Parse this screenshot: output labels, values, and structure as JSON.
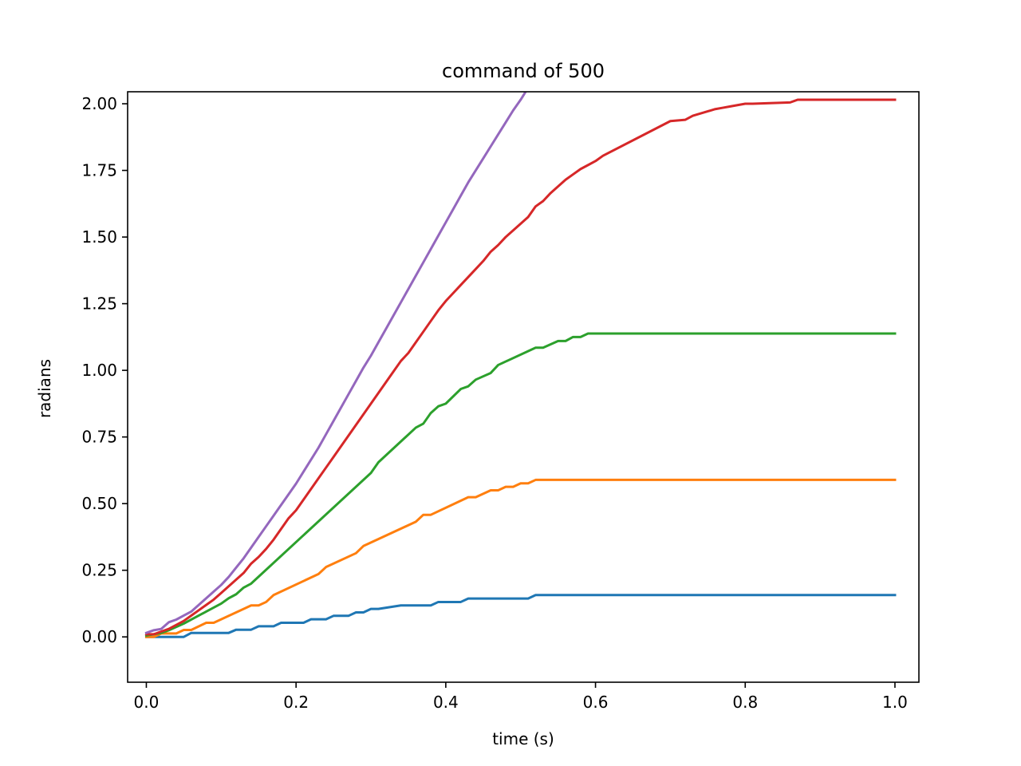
{
  "chart_data": {
    "type": "line",
    "title": "command of 500",
    "xlabel": "time (s)",
    "ylabel": "radians",
    "xlim": [
      -0.025,
      1.032
    ],
    "ylim": [
      -0.17,
      2.045
    ],
    "xticks": [
      0.0,
      0.2,
      0.4,
      0.6,
      0.8,
      1.0
    ],
    "xtick_labels": [
      "0.0",
      "0.2",
      "0.4",
      "0.6",
      "0.8",
      "1.0"
    ],
    "yticks": [
      0.0,
      0.25,
      0.5,
      0.75,
      1.0,
      1.25,
      1.5,
      1.75,
      2.0
    ],
    "ytick_labels": [
      "0.00",
      "0.25",
      "0.50",
      "0.75",
      "1.00",
      "1.25",
      "1.50",
      "1.75",
      "2.00"
    ],
    "grid": false,
    "series": [
      {
        "color": "#1f77b4",
        "x": [
          0.0,
          0.05,
          0.06,
          0.11,
          0.12,
          0.14,
          0.15,
          0.17,
          0.18,
          0.21,
          0.22,
          0.24,
          0.25,
          0.27,
          0.28,
          0.29,
          0.3,
          0.31,
          0.34,
          0.35,
          0.38,
          0.39,
          0.42,
          0.43,
          0.51,
          0.52,
          1.0
        ],
        "y": [
          0.0,
          0.0,
          0.015,
          0.015,
          0.027,
          0.027,
          0.04,
          0.04,
          0.053,
          0.053,
          0.066,
          0.066,
          0.079,
          0.079,
          0.092,
          0.092,
          0.105,
          0.105,
          0.118,
          0.118,
          0.118,
          0.131,
          0.131,
          0.144,
          0.144,
          0.157,
          0.157
        ]
      },
      {
        "color": "#ff7f0e",
        "x": [
          0.0,
          0.01,
          0.02,
          0.04,
          0.05,
          0.06,
          0.08,
          0.09,
          0.14,
          0.15,
          0.16,
          0.17,
          0.23,
          0.24,
          0.28,
          0.29,
          0.36,
          0.37,
          0.38,
          0.43,
          0.44,
          0.46,
          0.47,
          0.48,
          0.49,
          0.5,
          0.51,
          0.52,
          1.0
        ],
        "y": [
          0.0,
          0.0,
          0.013,
          0.013,
          0.026,
          0.026,
          0.053,
          0.053,
          0.118,
          0.118,
          0.131,
          0.157,
          0.236,
          0.262,
          0.314,
          0.341,
          0.432,
          0.458,
          0.458,
          0.524,
          0.524,
          0.55,
          0.55,
          0.563,
          0.563,
          0.576,
          0.576,
          0.589,
          0.589
        ]
      },
      {
        "color": "#2ca02c",
        "x": [
          0.0,
          0.02,
          0.03,
          0.05,
          0.07,
          0.08,
          0.09,
          0.1,
          0.11,
          0.12,
          0.13,
          0.14,
          0.3,
          0.31,
          0.36,
          0.37,
          0.38,
          0.39,
          0.4,
          0.42,
          0.43,
          0.44,
          0.46,
          0.47,
          0.52,
          0.53,
          0.55,
          0.56,
          0.57,
          0.58,
          0.59,
          0.6,
          1.0
        ],
        "y": [
          0.005,
          0.015,
          0.025,
          0.05,
          0.08,
          0.095,
          0.11,
          0.125,
          0.145,
          0.16,
          0.185,
          0.2,
          0.615,
          0.655,
          0.785,
          0.8,
          0.84,
          0.865,
          0.875,
          0.93,
          0.94,
          0.965,
          0.99,
          1.02,
          1.085,
          1.085,
          1.11,
          1.11,
          1.125,
          1.125,
          1.138,
          1.138,
          1.138
        ]
      },
      {
        "color": "#d62728",
        "x": [
          0.0,
          0.01,
          0.02,
          0.03,
          0.04,
          0.05,
          0.06,
          0.07,
          0.08,
          0.09,
          0.1,
          0.11,
          0.12,
          0.13,
          0.14,
          0.15,
          0.16,
          0.17,
          0.18,
          0.19,
          0.2,
          0.21,
          0.22,
          0.23,
          0.24,
          0.25,
          0.26,
          0.27,
          0.28,
          0.29,
          0.3,
          0.31,
          0.32,
          0.33,
          0.34,
          0.35,
          0.36,
          0.37,
          0.38,
          0.39,
          0.4,
          0.41,
          0.42,
          0.43,
          0.44,
          0.45,
          0.46,
          0.47,
          0.48,
          0.49,
          0.5,
          0.51,
          0.52,
          0.53,
          0.54,
          0.55,
          0.56,
          0.57,
          0.58,
          0.59,
          0.6,
          0.61,
          0.7,
          0.72,
          0.73,
          0.76,
          0.77,
          0.78,
          0.8,
          0.81,
          0.86,
          0.87,
          1.0
        ],
        "y": [
          0.01,
          0.01,
          0.02,
          0.03,
          0.045,
          0.06,
          0.08,
          0.1,
          0.12,
          0.14,
          0.165,
          0.19,
          0.215,
          0.24,
          0.275,
          0.3,
          0.33,
          0.365,
          0.405,
          0.445,
          0.475,
          0.515,
          0.555,
          0.595,
          0.635,
          0.675,
          0.715,
          0.755,
          0.795,
          0.835,
          0.875,
          0.915,
          0.955,
          0.995,
          1.035,
          1.065,
          1.105,
          1.145,
          1.185,
          1.225,
          1.26,
          1.29,
          1.32,
          1.35,
          1.38,
          1.41,
          1.445,
          1.47,
          1.5,
          1.525,
          1.55,
          1.575,
          1.615,
          1.635,
          1.665,
          1.69,
          1.715,
          1.735,
          1.755,
          1.77,
          1.785,
          1.805,
          1.935,
          1.94,
          1.955,
          1.98,
          1.985,
          1.99,
          2.0,
          2.0,
          2.005,
          2.015,
          2.015
        ]
      },
      {
        "color": "#9467bd",
        "x": [
          0.0,
          0.01,
          0.02,
          0.03,
          0.04,
          0.05,
          0.06,
          0.07,
          0.08,
          0.09,
          0.1,
          0.11,
          0.12,
          0.13,
          0.14,
          0.15,
          0.16,
          0.17,
          0.18,
          0.19,
          0.2,
          0.21,
          0.22,
          0.23,
          0.24,
          0.25,
          0.26,
          0.27,
          0.28,
          0.29,
          0.3,
          0.31,
          0.32,
          0.33,
          0.34,
          0.35,
          0.36,
          0.37,
          0.38,
          0.39,
          0.4,
          0.41,
          0.42,
          0.43,
          0.44,
          0.45,
          0.46,
          0.47,
          0.48,
          0.49,
          0.5,
          0.51
        ],
        "y": [
          0.015,
          0.025,
          0.03,
          0.055,
          0.065,
          0.08,
          0.095,
          0.12,
          0.145,
          0.17,
          0.195,
          0.225,
          0.26,
          0.295,
          0.335,
          0.375,
          0.415,
          0.455,
          0.495,
          0.535,
          0.575,
          0.62,
          0.665,
          0.71,
          0.76,
          0.81,
          0.86,
          0.91,
          0.96,
          1.01,
          1.055,
          1.105,
          1.155,
          1.205,
          1.255,
          1.305,
          1.355,
          1.405,
          1.455,
          1.505,
          1.555,
          1.605,
          1.655,
          1.705,
          1.75,
          1.795,
          1.84,
          1.885,
          1.93,
          1.975,
          2.015,
          2.06
        ]
      }
    ]
  }
}
